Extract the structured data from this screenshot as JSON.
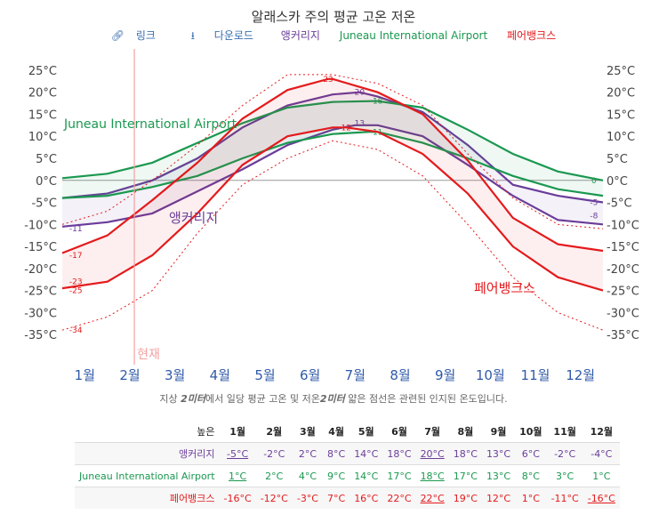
{
  "title": "알래스카 주의 평균 고온 저온",
  "toolbar": {
    "link_label": "링크",
    "download_label": "다운로드"
  },
  "legend": [
    "앵커리지",
    "Juneau International Airport",
    "페어뱅크스"
  ],
  "colors": {
    "anchorage": "#6a3d9a",
    "juneau": "#1a9850",
    "fairbanks": "#e41a1c",
    "now": "#f4a0a0"
  },
  "chart_data": {
    "type": "line",
    "title": "알래스카 주의 평균 고온 저온",
    "ylim": [
      -38,
      27
    ],
    "yticks": [
      25,
      20,
      15,
      10,
      5,
      0,
      -5,
      -10,
      -15,
      -20,
      -25,
      -30,
      -35
    ],
    "ytick_labels": [
      "25°C",
      "20°C",
      "15°C",
      "10°C",
      "5°C",
      "0°C",
      "-5°C",
      "-10°C",
      "-15°C",
      "-20°C",
      "-25°C",
      "-30°C",
      "-35°C"
    ],
    "x_labels": [
      "1월",
      "2월",
      "3월",
      "4월",
      "5월",
      "6월",
      "7월",
      "8월",
      "9월",
      "10월",
      "11월",
      "12월"
    ],
    "now_label": "현재",
    "now_x": 1.6,
    "grid": "zero line only",
    "series": [
      {
        "name": "앵커리지",
        "color_key": "anchorage",
        "high": [
          [
            0,
            -4
          ],
          [
            1,
            -3
          ],
          [
            2,
            0
          ],
          [
            3,
            5
          ],
          [
            4,
            12
          ],
          [
            5,
            17
          ],
          [
            6,
            19.5
          ],
          [
            6.6,
            20
          ],
          [
            7,
            19
          ],
          [
            8,
            15.5
          ],
          [
            9,
            8
          ],
          [
            10,
            -1
          ],
          [
            11,
            -3.5
          ],
          [
            12,
            -5
          ]
        ],
        "low": [
          [
            0,
            -10.5
          ],
          [
            1,
            -9.5
          ],
          [
            2,
            -7.5
          ],
          [
            3,
            -2.5
          ],
          [
            4,
            2.5
          ],
          [
            5,
            8
          ],
          [
            6,
            11.5
          ],
          [
            6.5,
            12.5
          ],
          [
            7,
            12.5
          ],
          [
            8,
            10
          ],
          [
            9,
            3.5
          ],
          [
            10,
            -3.5
          ],
          [
            11,
            -9
          ],
          [
            12,
            -10
          ]
        ],
        "labels": [
          {
            "x": 0.3,
            "y": -11,
            "text": "-11"
          },
          {
            "x": 6.6,
            "y": 20,
            "text": "20"
          },
          {
            "x": 6.6,
            "y": 13,
            "text": "13"
          },
          {
            "x": 11.8,
            "y": -5,
            "text": "-5"
          },
          {
            "x": 11.8,
            "y": -8,
            "text": "-8"
          }
        ],
        "inline_label": "앵커리지"
      },
      {
        "name": "Juneau International Airport",
        "color_key": "juneau",
        "high": [
          [
            0,
            0.5
          ],
          [
            1,
            1.5
          ],
          [
            2,
            4
          ],
          [
            3,
            8.5
          ],
          [
            4,
            13
          ],
          [
            5,
            16.5
          ],
          [
            6,
            17.8
          ],
          [
            6.9,
            18
          ],
          [
            7,
            18
          ],
          [
            8,
            16.5
          ],
          [
            9,
            11.5
          ],
          [
            10,
            6
          ],
          [
            11,
            2
          ],
          [
            12,
            0
          ]
        ],
        "low": [
          [
            0,
            -4
          ],
          [
            1,
            -3.5
          ],
          [
            2,
            -1.5
          ],
          [
            3,
            1
          ],
          [
            4,
            5
          ],
          [
            5,
            8.5
          ],
          [
            6,
            10.5
          ],
          [
            6.8,
            11
          ],
          [
            7,
            11
          ],
          [
            8,
            8.5
          ],
          [
            9,
            5
          ],
          [
            10,
            1
          ],
          [
            11,
            -2
          ],
          [
            12,
            -3.5
          ]
        ],
        "labels": [
          {
            "x": 7,
            "y": 18,
            "text": "18"
          },
          {
            "x": 7,
            "y": 11,
            "text": "11"
          },
          {
            "x": 11.8,
            "y": 0,
            "text": "0"
          }
        ],
        "inline_label": "Juneau International Airport"
      },
      {
        "name": "페어뱅크스",
        "color_key": "fairbanks",
        "high": [
          [
            0,
            -16.5
          ],
          [
            1,
            -12.5
          ],
          [
            2,
            -4.5
          ],
          [
            3,
            4
          ],
          [
            4,
            14
          ],
          [
            5,
            20.5
          ],
          [
            5.9,
            23
          ],
          [
            6,
            23
          ],
          [
            7,
            20
          ],
          [
            8,
            15
          ],
          [
            9,
            4.5
          ],
          [
            10,
            -8.5
          ],
          [
            11,
            -14.5
          ],
          [
            12,
            -16
          ]
        ],
        "low": [
          [
            0,
            -24.5
          ],
          [
            1,
            -23
          ],
          [
            2,
            -17
          ],
          [
            3,
            -7.5
          ],
          [
            4,
            3.5
          ],
          [
            5,
            10
          ],
          [
            6,
            12
          ],
          [
            6.3,
            12
          ],
          [
            7,
            11
          ],
          [
            8,
            6
          ],
          [
            9,
            -3
          ],
          [
            10,
            -15
          ],
          [
            11,
            -22
          ],
          [
            12,
            -25
          ]
        ],
        "record_low": [
          [
            0,
            -34
          ],
          [
            1,
            -31
          ],
          [
            2,
            -25
          ],
          [
            3,
            -12
          ],
          [
            4,
            -1
          ],
          [
            5,
            5
          ],
          [
            6,
            9
          ],
          [
            7,
            7
          ],
          [
            8,
            1
          ],
          [
            9,
            -10
          ],
          [
            10,
            -22
          ],
          [
            11,
            -30
          ],
          [
            12,
            -34
          ]
        ],
        "record_high": [
          [
            0,
            -10
          ],
          [
            1,
            -7
          ],
          [
            2,
            0
          ],
          [
            3,
            8
          ],
          [
            4,
            17
          ],
          [
            5,
            24
          ],
          [
            6,
            24
          ],
          [
            7,
            22
          ],
          [
            8,
            17
          ],
          [
            9,
            6
          ],
          [
            10,
            -4
          ],
          [
            11,
            -10
          ],
          [
            12,
            -11
          ]
        ],
        "labels": [
          {
            "x": 0.3,
            "y": -17,
            "text": "-17"
          },
          {
            "x": 0.3,
            "y": -23,
            "text": "-23"
          },
          {
            "x": 0.3,
            "y": -25,
            "text": "-25"
          },
          {
            "x": 0.3,
            "y": -34,
            "text": "-34"
          },
          {
            "x": 5.9,
            "y": 23,
            "text": "23"
          },
          {
            "x": 6.3,
            "y": 12,
            "text": "12"
          }
        ],
        "inline_label": "페어뱅크스"
      }
    ]
  },
  "footnote": {
    "pre": "지상 ",
    "b1": "2미터",
    "mid": "에서 일당 평균 고온 및 저온",
    "b2": "2미터",
    "post": " 얇은 점선은 관련된 인지된 온도입니다."
  },
  "table": {
    "header": [
      "높은",
      "1월",
      "2월",
      "3월",
      "4월",
      "5월",
      "6월",
      "7월",
      "8월",
      "9월",
      "10월",
      "11월",
      "12월"
    ],
    "rows": [
      {
        "name": "앵커리지",
        "color_key": "anchorage",
        "values": [
          "-5°C",
          "-2°C",
          "2°C",
          "8°C",
          "14°C",
          "18°C",
          "20°C",
          "18°C",
          "13°C",
          "6°C",
          "-2°C",
          "-4°C"
        ],
        "underline": [
          0,
          6
        ]
      },
      {
        "name": "Juneau International Airport",
        "color_key": "juneau",
        "values": [
          "1°C",
          "2°C",
          "4°C",
          "9°C",
          "14°C",
          "17°C",
          "18°C",
          "17°C",
          "13°C",
          "8°C",
          "3°C",
          "1°C"
        ],
        "underline": [
          0,
          6
        ]
      },
      {
        "name": "페어뱅크스",
        "color_key": "fairbanks",
        "values": [
          "-16°C",
          "-12°C",
          "-3°C",
          "7°C",
          "16°C",
          "22°C",
          "22°C",
          "19°C",
          "12°C",
          "1°C",
          "-11°C",
          "-16°C"
        ],
        "underline": [
          6,
          11
        ]
      }
    ]
  }
}
